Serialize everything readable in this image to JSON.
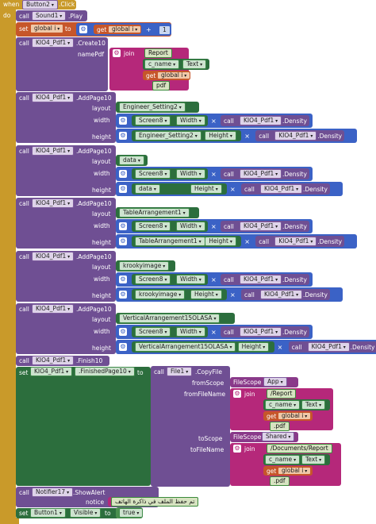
{
  "event": {
    "when": "when",
    "component": "Button2",
    "event": ".Click",
    "do": "do"
  },
  "b1": {
    "call": "call",
    "component": "Sound1",
    "method": ".Play"
  },
  "b2": {
    "set": "set",
    "var": "global i",
    "to": "to",
    "get": "get",
    "getvar": "global i",
    "op": "+",
    "num": "1"
  },
  "b3": {
    "call": "call",
    "component": "KIO4_Pdf1",
    "method": ".Create10",
    "param": "namePdf",
    "join": "join",
    "parts": [
      "Report",
      "c_name",
      "Text",
      "get",
      "global i",
      "pdf"
    ]
  },
  "pages": [
    {
      "component": "KIO4_Pdf1",
      "method": ".AddPage10",
      "layout_lbl": "layout",
      "width_lbl": "width",
      "height_lbl": "height",
      "layout": "Engineer_Setting2",
      "w": {
        "comp": "Screen8",
        "prop": "Width",
        "mul": "×",
        "call": "call",
        "pdf": "KIO4_Pdf1",
        "dens": ".Density"
      },
      "h": {
        "comp": "Engineer_Setting2",
        "prop": "Height",
        "mul": "×",
        "call": "call",
        "pdf": "KIO4_Pdf1",
        "dens": ".Density"
      }
    },
    {
      "component": "KIO4_Pdf1",
      "method": ".AddPage10",
      "layout_lbl": "layout",
      "width_lbl": "width",
      "height_lbl": "height",
      "layout": "data",
      "w": {
        "comp": "Screen8",
        "prop": "Width",
        "mul": "×",
        "call": "call",
        "pdf": "KIO4_Pdf1",
        "dens": ".Density"
      },
      "h": {
        "comp": "data",
        "prop": "Height",
        "mul": "×",
        "call": "call",
        "pdf": "KIO4_Pdf1",
        "dens": ".Density"
      }
    },
    {
      "component": "KIO4_Pdf1",
      "method": ".AddPage10",
      "layout_lbl": "layout",
      "width_lbl": "width",
      "height_lbl": "height",
      "layout": "TableArrangement1",
      "w": {
        "comp": "Screen8",
        "prop": "Width",
        "mul": "×",
        "call": "call",
        "pdf": "KIO4_Pdf1",
        "dens": ".Density"
      },
      "h": {
        "comp": "TableArrangement1",
        "prop": "Height",
        "mul": "×",
        "call": "call",
        "pdf": "KIO4_Pdf1",
        "dens": ".Density"
      }
    },
    {
      "component": "KIO4_Pdf1",
      "method": ".AddPage10",
      "layout_lbl": "layout",
      "width_lbl": "width",
      "height_lbl": "height",
      "layout": "krookyimage",
      "w": {
        "comp": "Screen8",
        "prop": "Width",
        "mul": "×",
        "call": "call",
        "pdf": "KIO4_Pdf1",
        "dens": ".Density"
      },
      "h": {
        "comp": "krookyimage",
        "prop": "Height",
        "mul": "×",
        "call": "call",
        "pdf": "KIO4_Pdf1",
        "dens": ".Density"
      }
    },
    {
      "component": "KIO4_Pdf1",
      "method": ".AddPage10",
      "layout_lbl": "layout",
      "width_lbl": "width",
      "height_lbl": "height",
      "layout": "VerticalArrangement15OLASA",
      "w": {
        "comp": "Screen8",
        "prop": "Width",
        "mul": "×",
        "call": "call",
        "pdf": "KIO4_Pdf1",
        "dens": ".Density"
      },
      "h": {
        "comp": "VerticalArrangement15OLASA",
        "prop": "Height",
        "mul": "×",
        "call": "call",
        "pdf": "KIO4_Pdf1",
        "dens": ".Density"
      }
    }
  ],
  "finish": {
    "call": "call",
    "component": "KIO4_Pdf1",
    "method": ".Finish10"
  },
  "copy": {
    "set": "set",
    "component": "KIO4_Pdf1",
    "prop": ".FinishedPage10",
    "to": "to",
    "call": "call",
    "file": "File1",
    "method": ".CopyFile",
    "fromScope_lbl": "fromScope",
    "fromFileName_lbl": "fromFileName",
    "toScope_lbl": "toScope",
    "toFileName_lbl": "toFileName",
    "scope_word": "FileScope",
    "fromScope": "App",
    "toScope": "Shared",
    "join": "join",
    "from_parts": [
      "/Report",
      "c_name",
      "Text",
      "get",
      "global i",
      ".pdf"
    ],
    "to_parts": [
      "/Documents/Report",
      "c_name",
      "Text",
      "get",
      "global i",
      ".pdf"
    ]
  },
  "alert": {
    "call": "call",
    "component": "Notifier17",
    "method": ".ShowAlert",
    "notice_lbl": "notice",
    "notice": "تم حفظ الملف في ذاكرة الهاتف"
  },
  "vis": {
    "set": "set",
    "component": "Button1",
    "prop": "Visible",
    "to": "to",
    "val": "true"
  }
}
